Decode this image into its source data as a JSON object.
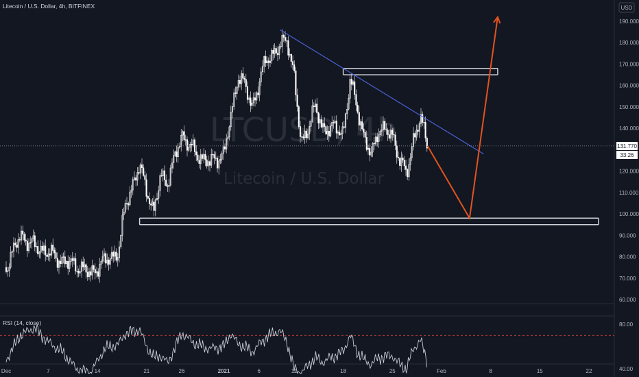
{
  "header": {
    "title": "Litecoin / U.S. Dollar, 4h, BITFINEX",
    "currency": "USD"
  },
  "watermark": {
    "symbol": "LTCUSD, 4h",
    "name": "Litecoin / U.S. Dollar"
  },
  "price_badge": {
    "price": "131.770",
    "countdown": "33:26"
  },
  "rsi_panel": {
    "label": "RSI (14, close)"
  },
  "colors": {
    "background": "#131722",
    "candle": "#ffffff",
    "trendline": "#4a62d8",
    "projection": "#e2541f",
    "rsi_line": "#c8cbd3",
    "rsi_bands": "#c74040",
    "rsi_midband": "#4a4fa8"
  },
  "chart_data": [
    {
      "type": "line",
      "subtype": "candlestick-approximation",
      "title": "Litecoin / U.S. Dollar, 4h, BITFINEX",
      "x_ticks": [
        "Dec",
        "7",
        "14",
        "21",
        "26",
        "2021",
        "6",
        "11",
        "18",
        "25",
        "Feb",
        "8",
        "15",
        "22"
      ],
      "y_ticks": [
        "190.000",
        "180.000",
        "170.000",
        "160.000",
        "150.000",
        "140.000",
        "120.000",
        "110.000",
        "100.000",
        "90.000",
        "80.000",
        "70.000",
        "60.000"
      ],
      "ylim": [
        60,
        195
      ],
      "price_series": {
        "x": [
          "2020-12-01",
          "2020-12-03",
          "2020-12-05",
          "2020-12-07",
          "2020-12-09",
          "2020-12-11",
          "2020-12-13",
          "2020-12-15",
          "2020-12-17",
          "2020-12-18",
          "2020-12-20",
          "2020-12-21",
          "2020-12-22",
          "2020-12-23",
          "2020-12-24",
          "2020-12-26",
          "2020-12-28",
          "2020-12-30",
          "2021-01-01",
          "2021-01-02",
          "2021-01-03",
          "2021-01-04",
          "2021-01-05",
          "2021-01-07",
          "2021-01-08",
          "2021-01-09",
          "2021-01-10",
          "2021-01-11",
          "2021-01-12",
          "2021-01-14",
          "2021-01-15",
          "2021-01-17",
          "2021-01-18",
          "2021-01-19",
          "2021-01-20",
          "2021-01-21",
          "2021-01-22",
          "2021-01-23",
          "2021-01-25",
          "2021-01-26",
          "2021-01-27",
          "2021-01-28",
          "2021-01-29",
          "2021-01-30"
        ],
        "close": [
          75,
          90,
          85,
          82,
          78,
          76,
          72,
          78,
          82,
          105,
          122,
          112,
          100,
          118,
          115,
          137,
          128,
          124,
          128,
          145,
          165,
          160,
          150,
          172,
          175,
          178,
          182,
          165,
          132,
          150,
          140,
          140,
          138,
          162,
          150,
          135,
          127,
          140,
          137,
          126,
          118,
          135,
          145,
          131.77
        ]
      },
      "trendline": {
        "x": [
          "2021-01-09",
          "2021-02-07"
        ],
        "y": [
          186,
          128
        ]
      },
      "resistance_zone": {
        "x": [
          "2021-01-18",
          "2021-02-09"
        ],
        "y": [
          165,
          168
        ]
      },
      "support_zone": {
        "x": [
          "2020-12-20",
          "2021-03-01"
        ],
        "y": [
          95,
          98
        ]
      },
      "projection": {
        "x": [
          "2021-01-30",
          "2021-02-05",
          "2021-02-09"
        ],
        "y": [
          131.77,
          98,
          192
        ]
      },
      "last_price": 131.77
    },
    {
      "type": "line",
      "title": "RSI (14, close)",
      "y_ticks": [
        "80.00",
        "40.00"
      ],
      "ylim": [
        35,
        85
      ],
      "bands": [
        70,
        30
      ],
      "values": [
        48,
        70,
        77,
        64,
        55,
        40,
        36,
        58,
        62,
        72,
        75,
        60,
        50,
        52,
        45,
        72,
        62,
        58,
        60,
        72,
        62,
        60,
        55,
        68,
        72,
        74,
        64,
        40,
        36,
        50,
        46,
        52,
        56,
        70,
        55,
        48,
        44,
        50,
        52,
        44,
        40,
        58,
        66,
        46
      ]
    }
  ]
}
